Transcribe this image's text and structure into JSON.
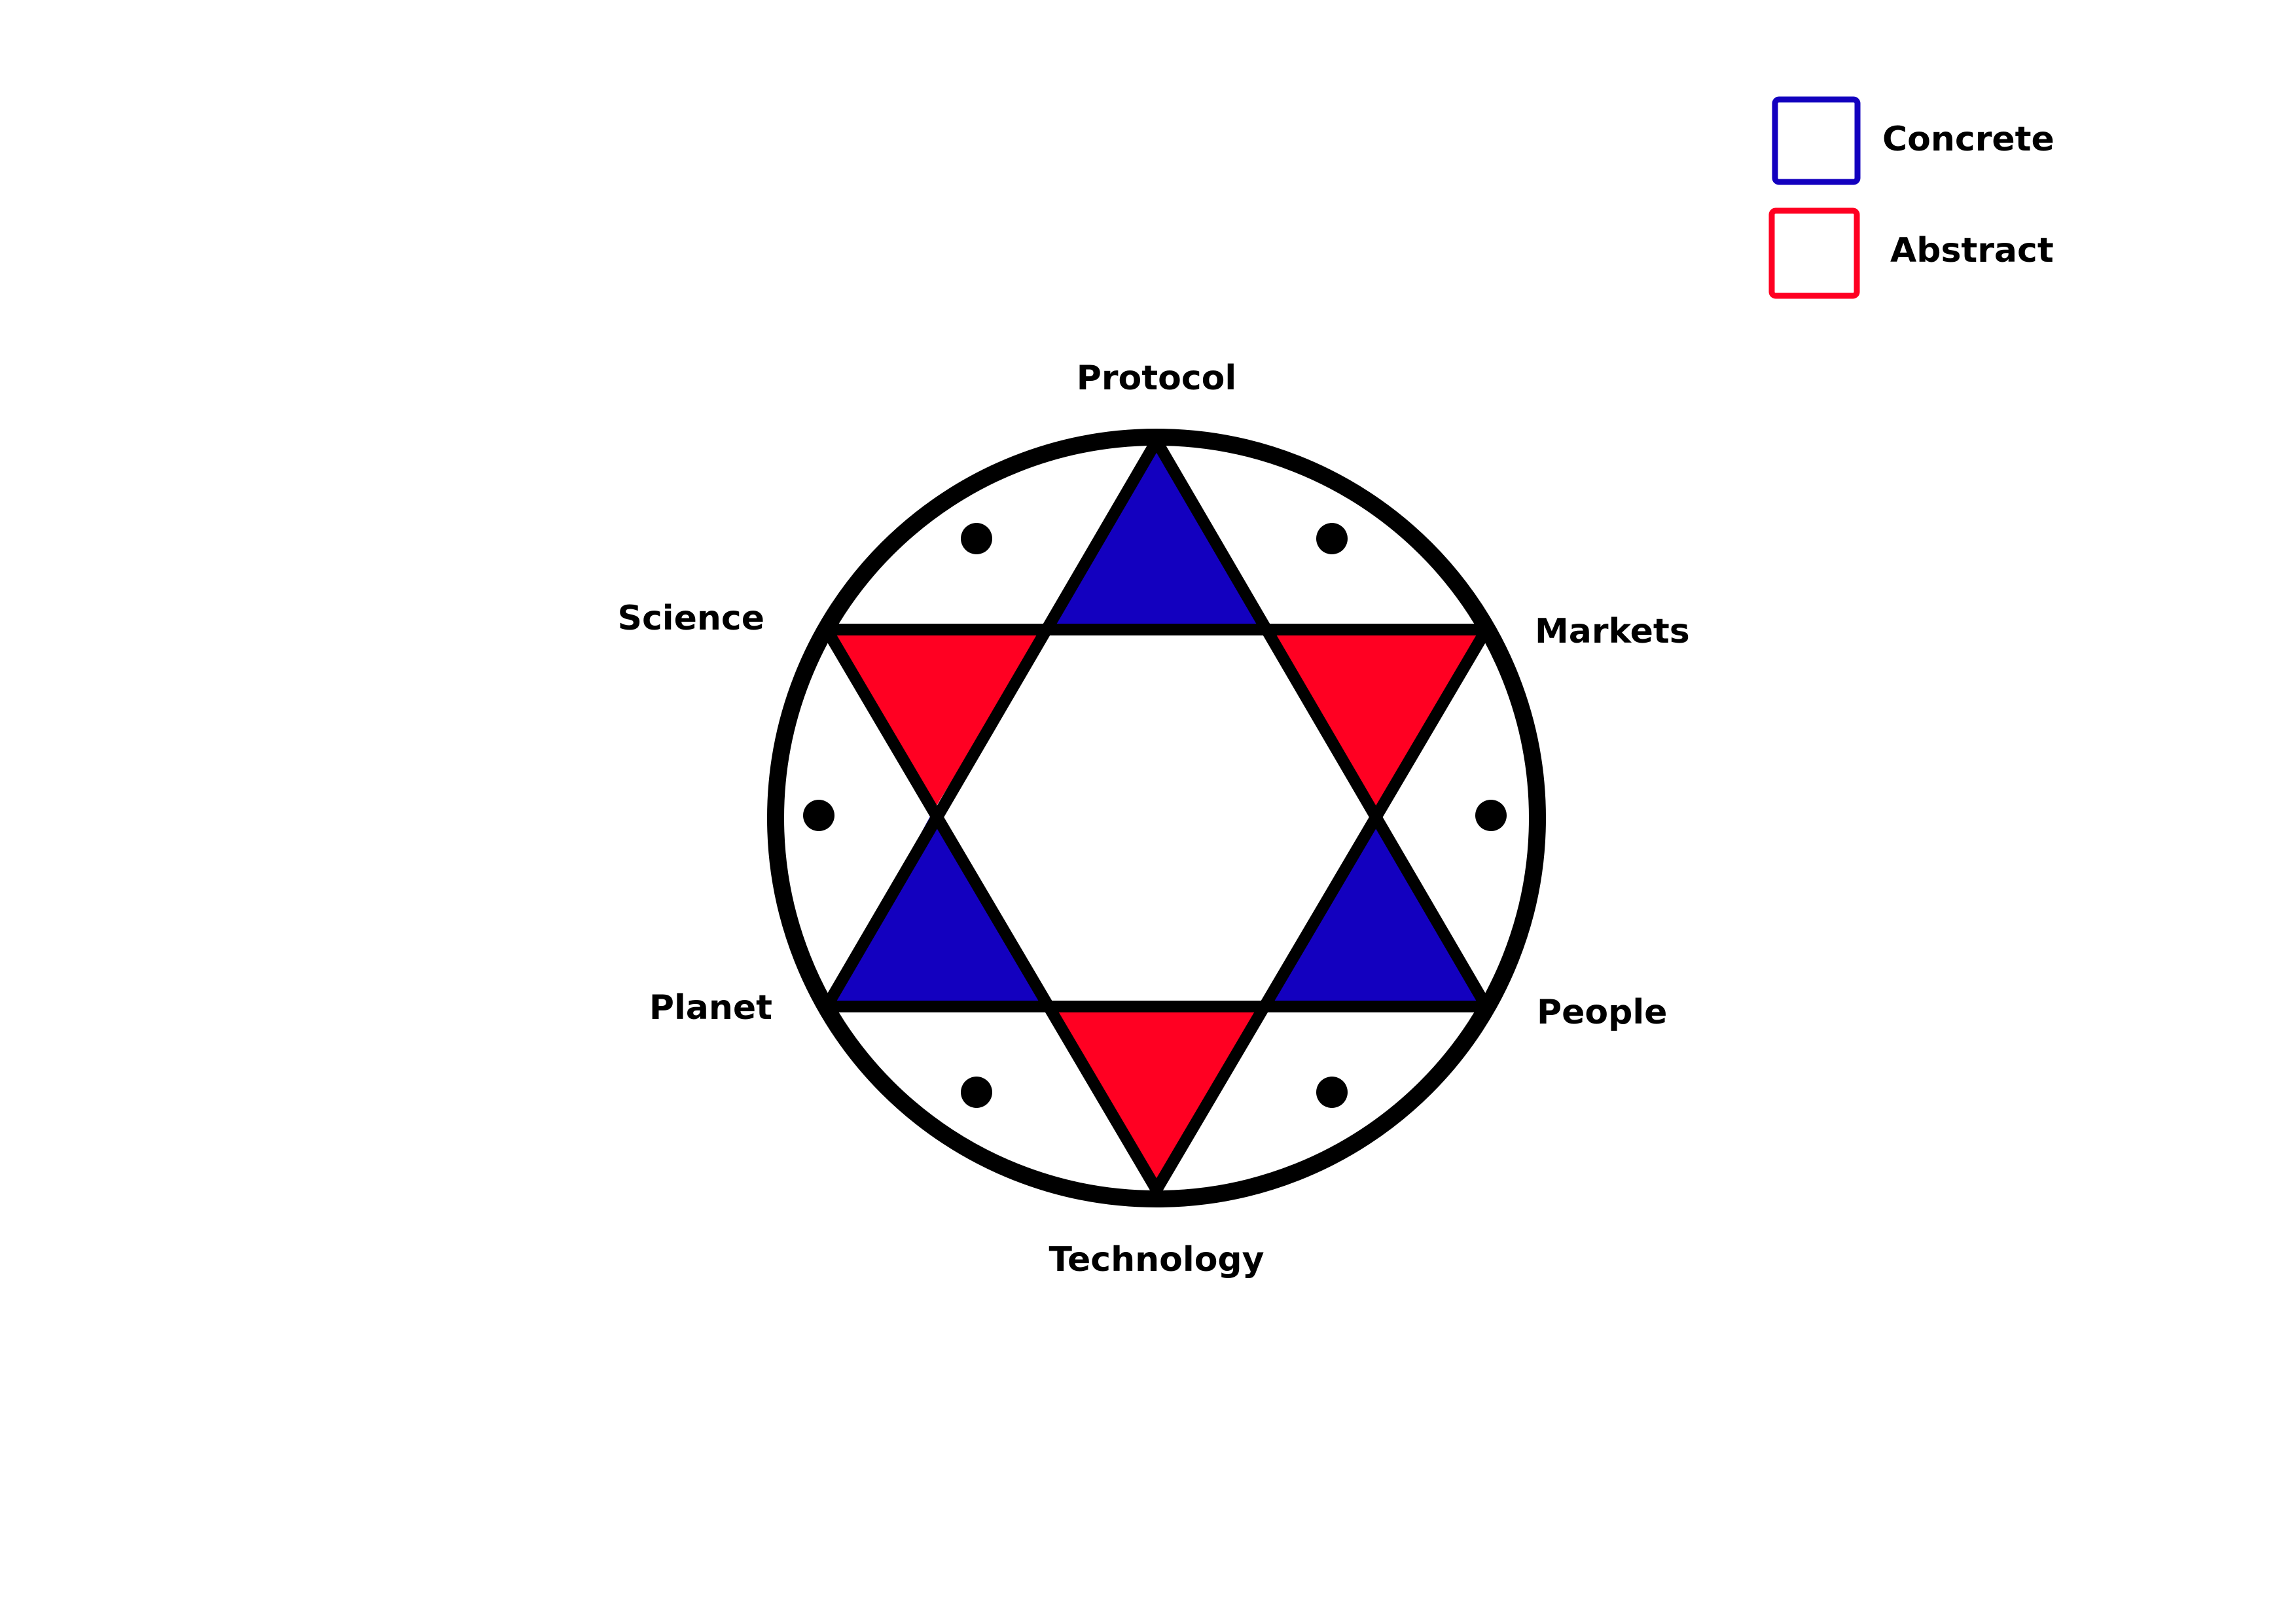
{
  "colors": {
    "concrete": "#1300BF",
    "abstract": "#FF0022",
    "outline": "#000000",
    "background": "#FFFFFF"
  },
  "legend": {
    "concrete_label": "Concrete",
    "abstract_label": "Abstract"
  },
  "nodes": {
    "top": "Protocol",
    "upper_left": "Science",
    "upper_right": "Markets",
    "lower_left": "Planet",
    "lower_right": "People",
    "bottom": "Technology"
  },
  "triangles": {
    "protocol": "concrete",
    "markets": "abstract",
    "people": "concrete",
    "technology": "abstract",
    "planet": "concrete",
    "science": "abstract"
  }
}
